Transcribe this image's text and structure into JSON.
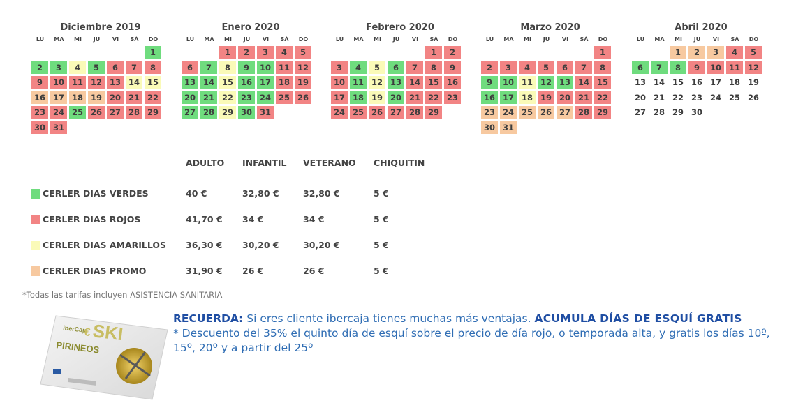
{
  "weekdays": [
    "LU",
    "MA",
    "MI",
    "JU",
    "VI",
    "SÁ",
    "DO"
  ],
  "months": [
    {
      "title": "Diciembre 2019",
      "offset": 6,
      "days": [
        "1",
        "2",
        "3",
        "4",
        "5",
        "6",
        "7",
        "8",
        "9",
        "10",
        "11",
        "12",
        "13",
        "14",
        "15",
        "16",
        "17",
        "18",
        "19",
        "20",
        "21",
        "22",
        "23",
        "24",
        "25",
        "26",
        "27",
        "28",
        "29",
        "30",
        "31"
      ],
      "colors": [
        "g",
        "g",
        "g",
        "y",
        "g",
        "r",
        "r",
        "r",
        "r",
        "r",
        "r",
        "r",
        "r",
        "y",
        "y",
        "p",
        "p",
        "p",
        "p",
        "r",
        "r",
        "r",
        "r",
        "r",
        "g",
        "r",
        "r",
        "r",
        "r",
        "r",
        "r"
      ]
    },
    {
      "title": "Enero 2020",
      "offset": 2,
      "days": [
        "1",
        "2",
        "3",
        "4",
        "5",
        "6",
        "7",
        "8",
        "9",
        "10",
        "11",
        "12",
        "13",
        "14",
        "15",
        "16",
        "17",
        "18",
        "19",
        "20",
        "21",
        "22",
        "23",
        "24",
        "25",
        "26",
        "27",
        "28",
        "29",
        "30",
        "31"
      ],
      "colors": [
        "r",
        "r",
        "r",
        "r",
        "r",
        "r",
        "g",
        "y",
        "g",
        "g",
        "r",
        "r",
        "g",
        "g",
        "y",
        "g",
        "g",
        "r",
        "r",
        "g",
        "g",
        "y",
        "g",
        "g",
        "r",
        "r",
        "g",
        "g",
        "y",
        "g",
        "r"
      ]
    },
    {
      "title": "Febrero 2020",
      "offset": 5,
      "days": [
        "1",
        "2",
        "3",
        "4",
        "5",
        "6",
        "7",
        "8",
        "9",
        "10",
        "11",
        "12",
        "13",
        "14",
        "15",
        "16",
        "17",
        "18",
        "19",
        "20",
        "21",
        "22",
        "23",
        "24",
        "25",
        "26",
        "27",
        "28",
        "29"
      ],
      "colors": [
        "r",
        "r",
        "r",
        "g",
        "y",
        "g",
        "r",
        "r",
        "r",
        "r",
        "g",
        "y",
        "g",
        "r",
        "r",
        "r",
        "r",
        "g",
        "y",
        "g",
        "r",
        "r",
        "r",
        "r",
        "r",
        "r",
        "r",
        "r",
        "r"
      ]
    },
    {
      "title": "Marzo 2020",
      "offset": 6,
      "days": [
        "1",
        "2",
        "3",
        "4",
        "5",
        "6",
        "7",
        "8",
        "9",
        "10",
        "11",
        "12",
        "13",
        "14",
        "15",
        "16",
        "17",
        "18",
        "19",
        "20",
        "21",
        "22",
        "23",
        "24",
        "25",
        "26",
        "27",
        "28",
        "29",
        "30",
        "31"
      ],
      "colors": [
        "r",
        "r",
        "r",
        "r",
        "r",
        "r",
        "r",
        "r",
        "g",
        "g",
        "y",
        "g",
        "g",
        "r",
        "r",
        "g",
        "g",
        "y",
        "r",
        "r",
        "r",
        "r",
        "p",
        "p",
        "p",
        "p",
        "p",
        "r",
        "r",
        "p",
        "p"
      ]
    },
    {
      "title": "Abril 2020",
      "offset": 2,
      "days": [
        "1",
        "2",
        "3",
        "4",
        "5",
        "6",
        "7",
        "8",
        "9",
        "10",
        "11",
        "12",
        "13",
        "14",
        "15",
        "16",
        "17",
        "18",
        "19",
        "20",
        "21",
        "22",
        "23",
        "24",
        "25",
        "26",
        "27",
        "28",
        "29",
        "30"
      ],
      "colors": [
        "p",
        "p",
        "p",
        "r",
        "r",
        "g",
        "g",
        "g",
        "r",
        "r",
        "r",
        "r",
        "n",
        "n",
        "n",
        "n",
        "n",
        "n",
        "n",
        "n",
        "n",
        "n",
        "n",
        "n",
        "n",
        "n",
        "n",
        "n",
        "n",
        "n"
      ]
    }
  ],
  "colors": {
    "g": "#6fdc7e",
    "r": "#f28484",
    "y": "#fafab8",
    "p": "#f7c9a0"
  },
  "prices": {
    "headers": [
      "ADULTO",
      "INFANTIL",
      "VETERANO",
      "CHIQUITIN"
    ],
    "rows": [
      {
        "label": "CERLER DIAS VERDES",
        "color": "#6fdc7e",
        "values": [
          "40 €",
          "32,80 €",
          "32,80 €",
          "5 €"
        ]
      },
      {
        "label": "CERLER DIAS ROJOS",
        "color": "#f28484",
        "values": [
          "41,70 €",
          "34 €",
          "34 €",
          "5 €"
        ]
      },
      {
        "label": "CERLER DIAS AMARILLOS",
        "color": "#fafab8",
        "values": [
          "36,30 €",
          "30,20 €",
          "30,20 €",
          "5 €"
        ]
      },
      {
        "label": "CERLER DIAS PROMO",
        "color": "#f7c9a0",
        "values": [
          "31,90 €",
          "26 €",
          "26 €",
          "5 €"
        ]
      }
    ]
  },
  "note": "*Todas las tarifas incluyen ASISTENCIA SANITARIA",
  "card": {
    "brand": "iberCaja",
    "ski": "SKI",
    "region": "PIRINEOS",
    "euro": "€"
  },
  "remember": {
    "lead": "RECUERDA:",
    "text1": " Si eres cliente ibercaja tienes muchas más ventajas. ",
    "highlight": "ACUMULA DÍAS DE ESQUÍ GRATIS",
    "text2": "* Descuento del 35% el quinto día de esquí sobre el precio de día rojo, o temporada alta, y gratis los días 10º, 15º, 20º y a partir del 25º"
  }
}
